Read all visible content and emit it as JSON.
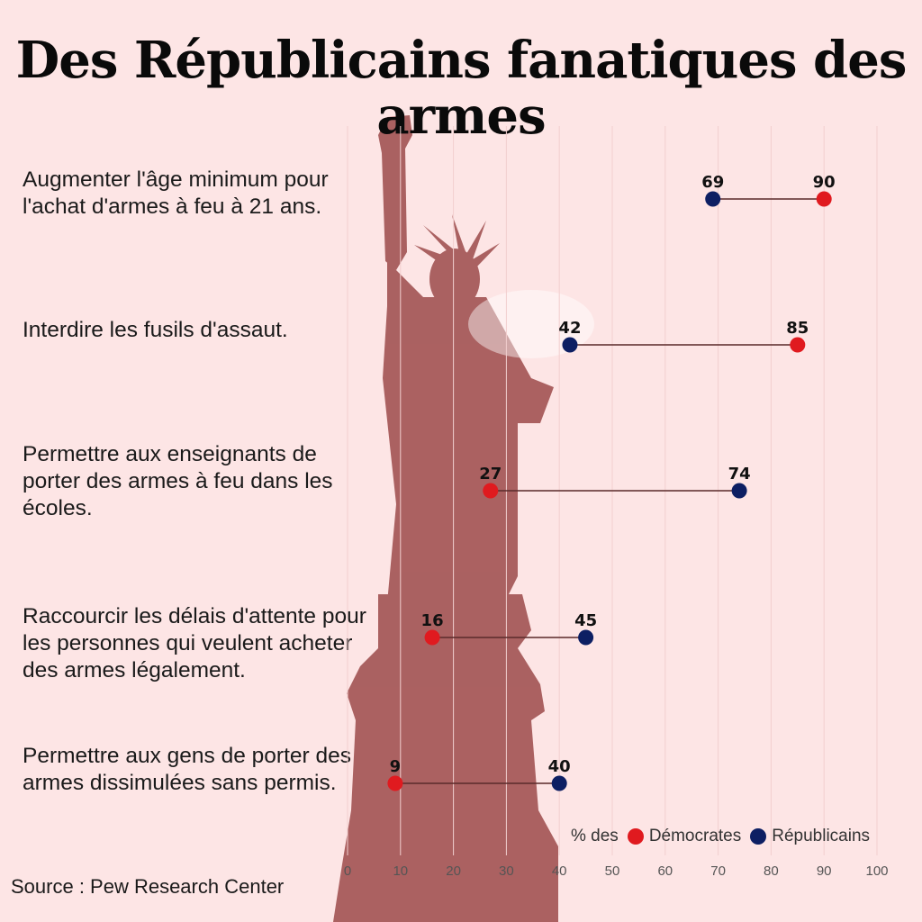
{
  "title": "Des Républicains fanatiques des armes",
  "source": "Source : Pew Research Center",
  "legend": {
    "prefix": "% des",
    "democrats": "Démocrates",
    "republicans": "Républicains"
  },
  "colors": {
    "democrats": "#e01a1f",
    "republicans": "#0d1f63",
    "background": "#fde5e5",
    "statue": "#9c4a4a"
  },
  "chart_data": {
    "type": "dumbbell",
    "title": "Des Républicains fanatiques des armes",
    "xlim": [
      0,
      100
    ],
    "x_ticks": [
      0,
      10,
      20,
      30,
      40,
      50,
      60,
      70,
      80,
      90,
      100
    ],
    "grid": true,
    "legend_position": "bottom-right",
    "categories": [
      "Augmenter l'âge minimum pour l'achat d'armes à feu à 21 ans.",
      "Interdire les fusils d'assaut.",
      "Permettre aux enseignants de porter des armes à feu dans les écoles.",
      "Raccourcir les délais d'attente pour les personnes qui veulent acheter des armes légalement.",
      "Permettre aux gens de porter des armes dissimulées sans permis."
    ],
    "series": [
      {
        "name": "Démocrates",
        "values": [
          90,
          85,
          27,
          16,
          9
        ]
      },
      {
        "name": "Républicains",
        "values": [
          69,
          42,
          74,
          45,
          40
        ]
      }
    ]
  }
}
